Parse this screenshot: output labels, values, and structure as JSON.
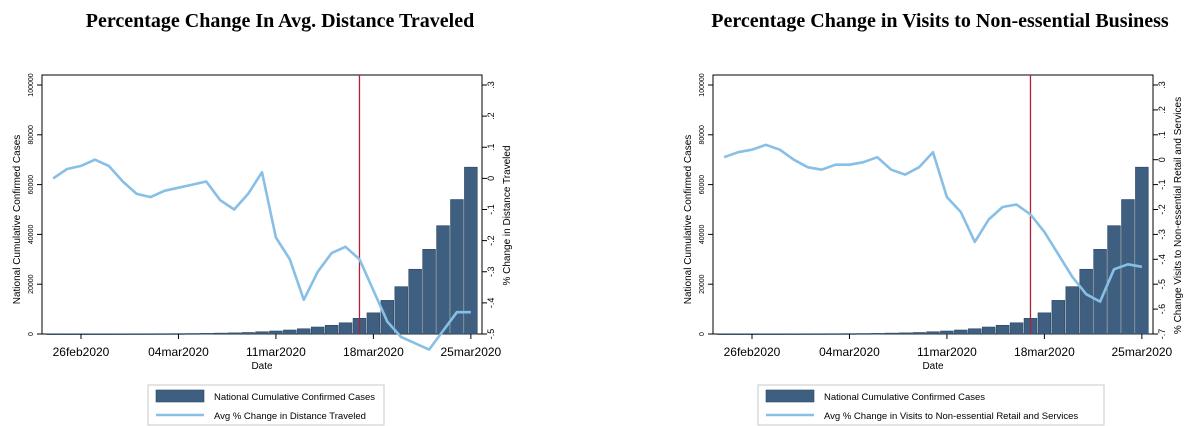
{
  "colors": {
    "bar": "#3e5f80",
    "bar_edge": "#2b4663",
    "line": "#87bfe6",
    "vline": "#b0213a"
  },
  "chart_data": [
    {
      "type": "bar+line",
      "title": "Percentage Change In Avg. Distance Traveled",
      "xlabel": "Date",
      "ylabel": "National Cumulative Confirmed Cases",
      "y2label": "% Change in Distance Traveled",
      "x_ticks": [
        "26feb2020",
        "04mar2020",
        "11mar2020",
        "18mar2020",
        "25mar2020"
      ],
      "ylim": [
        0,
        100000
      ],
      "y_ticks": [
        "0",
        "20000",
        "40000",
        "60000",
        "80000",
        "100000"
      ],
      "y2lim": [
        -0.5,
        0.3
      ],
      "y2_ticks": [
        "-.5",
        "-.4",
        "-.3",
        "-.2",
        "-.1",
        "0",
        ".1",
        ".2",
        ".3"
      ],
      "vline_date": "17mar2020",
      "dates": [
        "24feb2020",
        "25feb2020",
        "26feb2020",
        "27feb2020",
        "28feb2020",
        "29feb2020",
        "01mar2020",
        "02mar2020",
        "03mar2020",
        "04mar2020",
        "05mar2020",
        "06mar2020",
        "07mar2020",
        "08mar2020",
        "09mar2020",
        "10mar2020",
        "11mar2020",
        "12mar2020",
        "13mar2020",
        "14mar2020",
        "15mar2020",
        "16mar2020",
        "17mar2020",
        "18mar2020",
        "19mar2020",
        "20mar2020",
        "21mar2020",
        "22mar2020",
        "23mar2020",
        "24mar2020",
        "25mar2020"
      ],
      "series": [
        {
          "name": "National Cumulative Confirmed Cases",
          "values": [
            50,
            55,
            60,
            65,
            70,
            80,
            90,
            100,
            120,
            150,
            200,
            250,
            350,
            450,
            600,
            900,
            1200,
            1600,
            2100,
            2800,
            3500,
            4500,
            6300,
            8500,
            13500,
            19000,
            26000,
            34000,
            43500,
            54000,
            67000
          ]
        },
        {
          "name": "Avg % Change in Distance Traveled",
          "values": [
            0.0,
            0.03,
            0.04,
            0.06,
            0.04,
            -0.01,
            -0.05,
            -0.06,
            -0.04,
            -0.03,
            -0.02,
            -0.01,
            -0.07,
            -0.1,
            -0.05,
            0.02,
            -0.19,
            -0.26,
            -0.39,
            -0.3,
            -0.24,
            -0.22,
            -0.26,
            -0.36,
            -0.46,
            -0.51,
            -0.53,
            -0.55,
            -0.49,
            -0.43,
            -0.43
          ]
        }
      ]
    },
    {
      "type": "bar+line",
      "title": "Percentage Change in Visits to Non-essential Business",
      "xlabel": "Date",
      "ylabel": "National Cumulative Confirmed Cases",
      "y2label": "% Change Visits to Non-essential Retail and Services",
      "x_ticks": [
        "26feb2020",
        "04mar2020",
        "11mar2020",
        "18mar2020",
        "25mar2020"
      ],
      "ylim": [
        0,
        100000
      ],
      "y_ticks": [
        "0",
        "20000",
        "40000",
        "60000",
        "80000",
        "100000"
      ],
      "y2lim": [
        -0.7,
        0.3
      ],
      "y2_ticks": [
        "-.7",
        "-.6",
        "-.5",
        "-.4",
        "-.3",
        "-.2",
        "-.1",
        "0",
        ".1",
        ".2",
        ".3"
      ],
      "vline_date": "17mar2020",
      "dates": [
        "24feb2020",
        "25feb2020",
        "26feb2020",
        "27feb2020",
        "28feb2020",
        "29feb2020",
        "01mar2020",
        "02mar2020",
        "03mar2020",
        "04mar2020",
        "05mar2020",
        "06mar2020",
        "07mar2020",
        "08mar2020",
        "09mar2020",
        "10mar2020",
        "11mar2020",
        "12mar2020",
        "13mar2020",
        "14mar2020",
        "15mar2020",
        "16mar2020",
        "17mar2020",
        "18mar2020",
        "19mar2020",
        "20mar2020",
        "21mar2020",
        "22mar2020",
        "23mar2020",
        "24mar2020",
        "25mar2020"
      ],
      "series": [
        {
          "name": "National Cumulative Confirmed Cases",
          "values": [
            50,
            55,
            60,
            65,
            70,
            80,
            90,
            100,
            120,
            150,
            200,
            250,
            350,
            450,
            600,
            900,
            1200,
            1600,
            2100,
            2800,
            3500,
            4500,
            6300,
            8500,
            13500,
            19000,
            26000,
            34000,
            43500,
            54000,
            67000
          ]
        },
        {
          "name": "Avg % Change in Visits to Non-essential Retail and Services",
          "values": [
            0.01,
            0.03,
            0.04,
            0.06,
            0.04,
            0.0,
            -0.03,
            -0.04,
            -0.02,
            -0.02,
            -0.01,
            0.01,
            -0.04,
            -0.06,
            -0.03,
            0.03,
            -0.15,
            -0.21,
            -0.33,
            -0.24,
            -0.19,
            -0.18,
            -0.22,
            -0.29,
            -0.38,
            -0.47,
            -0.54,
            -0.57,
            -0.44,
            -0.42,
            -0.43
          ]
        }
      ]
    }
  ]
}
